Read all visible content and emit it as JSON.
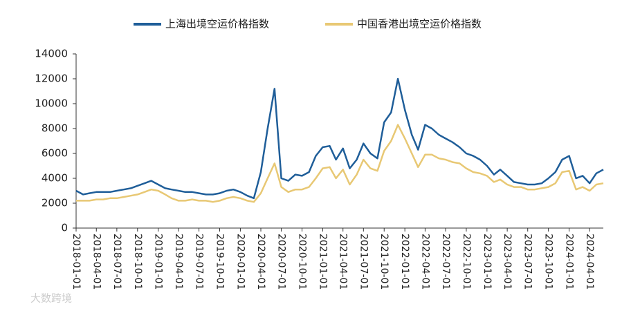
{
  "chart_data": {
    "type": "line",
    "watermark": "大数跨境",
    "x": [
      "2018-01-01",
      "2018-02-01",
      "2018-03-01",
      "2018-04-01",
      "2018-05-01",
      "2018-06-01",
      "2018-07-01",
      "2018-08-01",
      "2018-09-01",
      "2018-10-01",
      "2018-11-01",
      "2018-12-01",
      "2019-01-01",
      "2019-02-01",
      "2019-03-01",
      "2019-04-01",
      "2019-05-01",
      "2019-06-01",
      "2019-07-01",
      "2019-08-01",
      "2019-09-01",
      "2019-10-01",
      "2019-11-01",
      "2019-12-01",
      "2020-01-01",
      "2020-02-01",
      "2020-03-01",
      "2020-04-01",
      "2020-05-01",
      "2020-06-01",
      "2020-07-01",
      "2020-08-01",
      "2020-09-01",
      "2020-10-01",
      "2020-11-01",
      "2020-12-01",
      "2021-01-01",
      "2021-02-01",
      "2021-03-01",
      "2021-04-01",
      "2021-05-01",
      "2021-06-01",
      "2021-07-01",
      "2021-08-01",
      "2021-09-01",
      "2021-10-01",
      "2021-11-01",
      "2021-12-01",
      "2022-01-01",
      "2022-02-01",
      "2022-03-01",
      "2022-04-01",
      "2022-05-01",
      "2022-06-01",
      "2022-07-01",
      "2022-08-01",
      "2022-09-01",
      "2022-10-01",
      "2022-11-01",
      "2022-12-01",
      "2023-01-01",
      "2023-02-01",
      "2023-03-01",
      "2023-04-01",
      "2023-05-01",
      "2023-06-01",
      "2023-07-01",
      "2023-08-01",
      "2023-09-01",
      "2023-10-01",
      "2023-11-01",
      "2023-12-01",
      "2024-01-01",
      "2024-02-01",
      "2024-03-01",
      "2024-04-01",
      "2024-05-01",
      "2024-06-01"
    ],
    "series": [
      {
        "name": "上海出境空运价格指数",
        "color": "#1f5e99",
        "values": [
          3000,
          2700,
          2800,
          2900,
          2900,
          2900,
          3000,
          3100,
          3200,
          3400,
          3600,
          3800,
          3500,
          3200,
          3100,
          3000,
          2900,
          2900,
          2800,
          2700,
          2700,
          2800,
          3000,
          3100,
          2900,
          2600,
          2400,
          4500,
          8000,
          11200,
          4000,
          3800,
          4300,
          4200,
          4500,
          5800,
          6500,
          6600,
          5500,
          6400,
          4800,
          5500,
          6800,
          6000,
          5600,
          8500,
          9300,
          12000,
          9500,
          7500,
          6300,
          8300,
          8000,
          7500,
          7200,
          6900,
          6500,
          6000,
          5800,
          5500,
          5000,
          4300,
          4700,
          4200,
          3700,
          3600,
          3500,
          3500,
          3600,
          4000,
          4500,
          5500,
          5800,
          4000,
          4200,
          3600,
          4400,
          4700
        ]
      },
      {
        "name": "中国香港出境空运价格指数",
        "color": "#e8c874",
        "values": [
          2200,
          2200,
          2200,
          2300,
          2300,
          2400,
          2400,
          2500,
          2600,
          2700,
          2900,
          3100,
          3000,
          2700,
          2400,
          2200,
          2200,
          2300,
          2200,
          2200,
          2100,
          2200,
          2400,
          2500,
          2400,
          2200,
          2100,
          2800,
          4000,
          5200,
          3300,
          2900,
          3100,
          3100,
          3300,
          4000,
          4800,
          4900,
          4000,
          4700,
          3500,
          4300,
          5500,
          4800,
          4600,
          6200,
          7000,
          8300,
          7200,
          6000,
          4900,
          5900,
          5900,
          5600,
          5500,
          5300,
          5200,
          4800,
          4500,
          4400,
          4200,
          3700,
          3900,
          3500,
          3300,
          3300,
          3100,
          3100,
          3200,
          3300,
          3600,
          4500,
          4600,
          3100,
          3300,
          3000,
          3500,
          3600
        ]
      }
    ],
    "xlim": [
      "2018-01-01",
      "2024-06-01"
    ],
    "xticks": [
      "2018-01-01",
      "2018-04-01",
      "2018-07-01",
      "2018-10-01",
      "2019-01-01",
      "2019-04-01",
      "2019-07-01",
      "2019-10-01",
      "2020-01-01",
      "2020-04-01",
      "2020-07-01",
      "2020-10-01",
      "2021-01-01",
      "2021-04-01",
      "2021-07-01",
      "2021-10-01",
      "2022-01-01",
      "2022-04-01",
      "2022-07-01",
      "2022-10-01",
      "2023-01-01",
      "2023-04-01",
      "2023-07-01",
      "2023-10-01",
      "2024-01-01",
      "2024-04-01"
    ],
    "ylim": [
      0,
      14000
    ],
    "yticks": [
      0,
      2000,
      4000,
      6000,
      8000,
      10000,
      12000,
      14000
    ],
    "legend": "top"
  }
}
